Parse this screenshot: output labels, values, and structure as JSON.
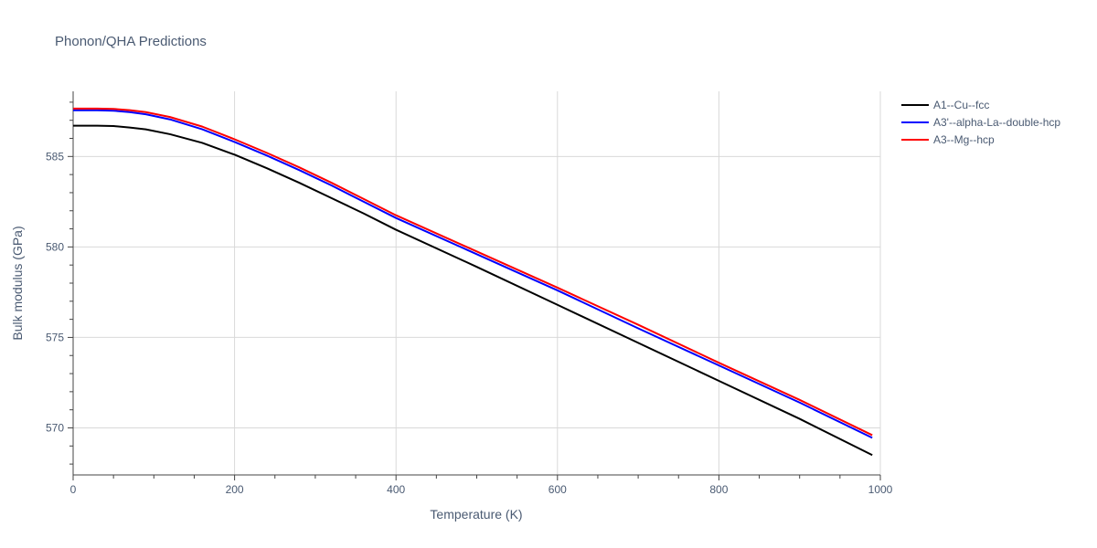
{
  "chart_data": {
    "type": "line",
    "title": "Phonon/QHA Predictions",
    "xlabel": "Temperature (K)",
    "ylabel": "Bulk modulus (GPa)",
    "xlim": [
      0,
      1000
    ],
    "ylim": [
      567.4,
      588.6
    ],
    "x_ticks": [
      0,
      200,
      400,
      600,
      800,
      1000
    ],
    "y_ticks": [
      570,
      575,
      580,
      585
    ],
    "grid": true,
    "legend_position": "top-right outside",
    "series": [
      {
        "name": "A1--Cu--fcc",
        "color": "#000000",
        "x": [
          0,
          30,
          50,
          70,
          90,
          120,
          160,
          200,
          240,
          280,
          320,
          360,
          400,
          500,
          600,
          700,
          800,
          900,
          990
        ],
        "y": [
          586.7,
          586.7,
          586.68,
          586.6,
          586.5,
          586.23,
          585.75,
          585.1,
          584.35,
          583.55,
          582.7,
          581.85,
          580.95,
          578.9,
          576.8,
          574.7,
          572.6,
          570.5,
          568.5
        ]
      },
      {
        "name": "A3'--alpha-La--double-hcp",
        "color": "#0000ff",
        "x": [
          0,
          30,
          50,
          70,
          90,
          120,
          160,
          200,
          240,
          280,
          320,
          360,
          400,
          500,
          600,
          700,
          800,
          900,
          990
        ],
        "y": [
          587.55,
          587.55,
          587.53,
          587.45,
          587.33,
          587.05,
          586.5,
          585.8,
          585.05,
          584.25,
          583.4,
          582.5,
          581.6,
          579.6,
          577.6,
          575.5,
          573.45,
          571.4,
          569.45
        ]
      },
      {
        "name": "A3--Mg--hcp",
        "color": "#ff0000",
        "x": [
          0,
          30,
          50,
          70,
          90,
          120,
          160,
          200,
          240,
          280,
          320,
          360,
          400,
          500,
          600,
          700,
          800,
          900,
          990
        ],
        "y": [
          587.65,
          587.65,
          587.63,
          587.56,
          587.45,
          587.18,
          586.65,
          585.95,
          585.2,
          584.4,
          583.55,
          582.65,
          581.75,
          579.75,
          577.75,
          575.7,
          573.6,
          571.55,
          569.6
        ]
      }
    ]
  }
}
